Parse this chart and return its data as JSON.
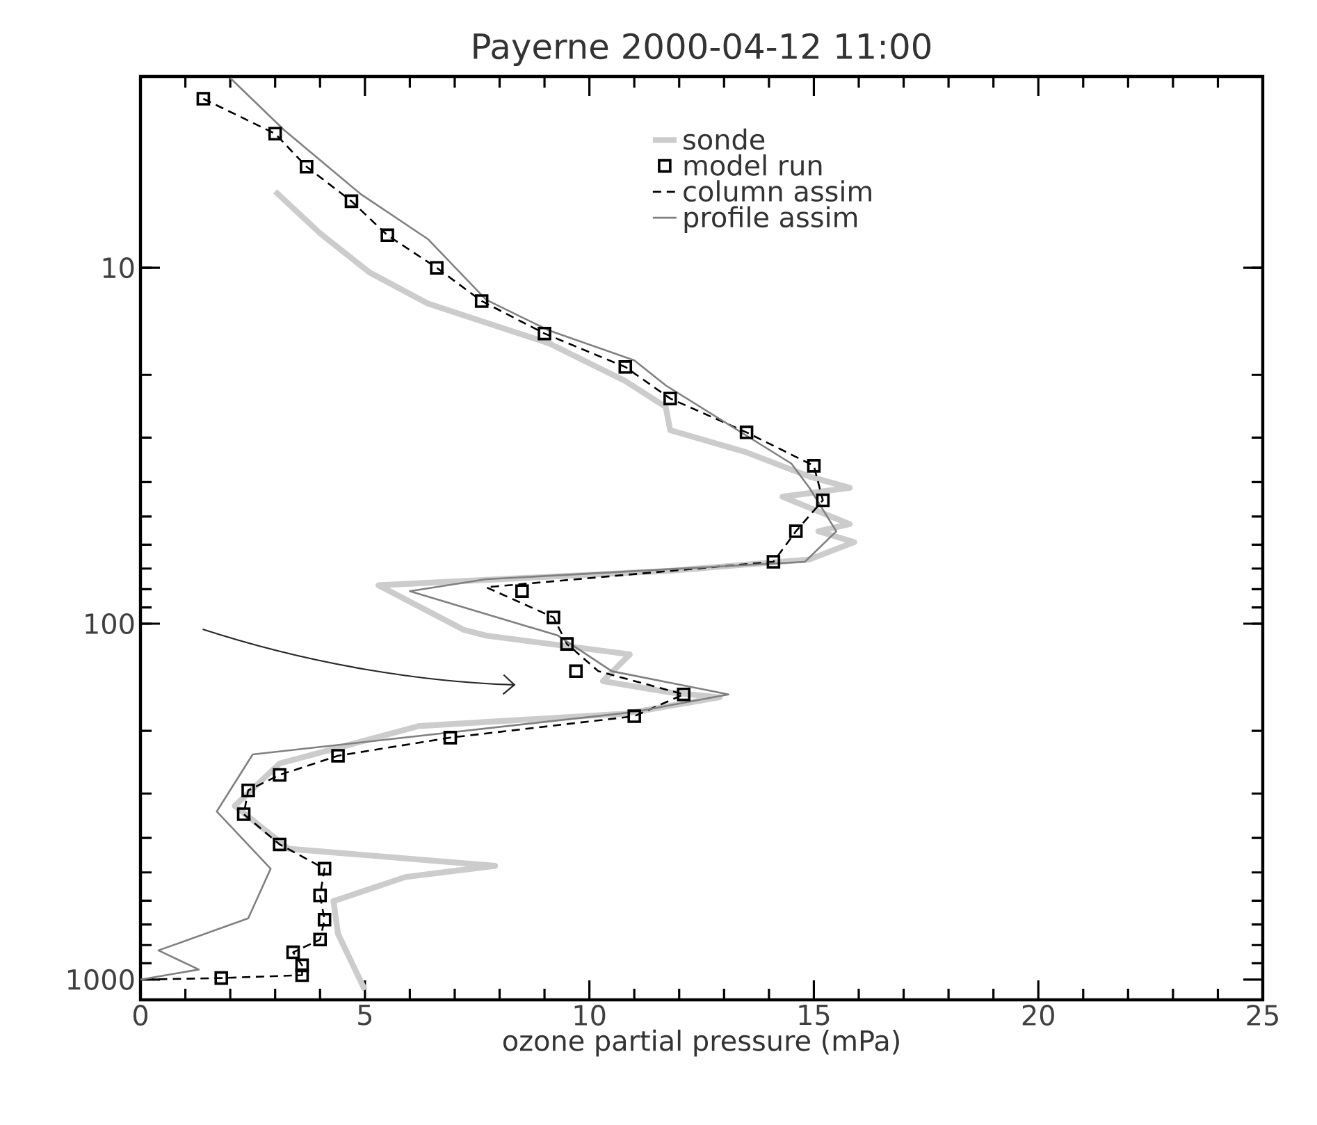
{
  "chart_data": {
    "type": "line",
    "title": "Payerne 2000-04-12 11:00",
    "xlabel": "ozone partial pressure (mPa)",
    "xlim": [
      0,
      25
    ],
    "xticks": [
      0,
      5,
      10,
      15,
      20,
      25
    ],
    "ylim": [
      1140,
      2.9
    ],
    "yticks": [
      10,
      100,
      1000
    ],
    "log": "y",
    "grid": false,
    "legend": "top right",
    "series": [
      {
        "name": "sonde",
        "color": "#cccccc",
        "line_style": "solid",
        "marker": "none",
        "x": [
          3.0,
          4.0,
          5.1,
          6.4,
          9.1,
          10.8,
          11.7,
          11.8,
          13.5,
          14.9,
          15.8,
          14.3,
          15.8,
          15.1,
          15.9,
          14.9,
          11.8,
          5.3,
          7.2,
          7.7,
          10.9,
          10.3,
          11.8,
          12.9,
          10.8,
          6.2,
          3.1,
          2.1,
          3.3,
          7.9,
          5.9,
          4.3,
          4.4,
          5.0
        ],
        "values": [
          6.1,
          8.0,
          10.3,
          12.6,
          16.3,
          20.8,
          24.6,
          28.6,
          33,
          38.6,
          41.5,
          44,
          52.5,
          55,
          59,
          66,
          71,
          78,
          104,
          108,
          122,
          145,
          156,
          161,
          179,
          194,
          247,
          325,
          429,
          479,
          515,
          602,
          744,
          1070
        ]
      },
      {
        "name": "model run",
        "type": "scatter",
        "color": "#000000",
        "marker": "square",
        "x": [
          1.4,
          3.0,
          3.7,
          4.7,
          5.5,
          6.6,
          7.6,
          9.0,
          10.8,
          11.8,
          13.5,
          15.0,
          15.2,
          14.6,
          14.1,
          8.5,
          9.2,
          9.5,
          9.7,
          12.1,
          11.0,
          6.9,
          4.4,
          3.1,
          2.4,
          2.3,
          3.1,
          4.1,
          4.0,
          4.1,
          4.0,
          3.4,
          3.6,
          3.6,
          1.8
        ],
        "values": [
          3.35,
          4.2,
          5.2,
          6.5,
          8.1,
          10,
          12.4,
          15.3,
          19,
          23.3,
          29,
          36,
          45,
          55,
          67,
          81,
          96,
          114,
          136,
          158,
          182,
          209,
          235,
          266,
          294,
          343,
          417,
          488,
          580,
          679,
          772,
          838,
          912,
          972,
          990
        ]
      },
      {
        "name": "column assim",
        "color": "#000000",
        "line_style": "dashed",
        "marker": "none",
        "x": [
          1.4,
          3.0,
          3.7,
          4.7,
          5.5,
          6.6,
          7.6,
          9.0,
          10.8,
          11.8,
          13.5,
          15.0,
          15.2,
          14.6,
          14.1,
          7.7,
          9.2,
          9.5,
          10.2,
          12.1,
          11.0,
          6.9,
          4.4,
          3.1,
          2.4,
          2.3,
          3.1,
          4.1,
          4.0,
          4.1,
          4.0,
          3.4,
          3.6,
          3.6,
          1.8,
          0
        ],
        "values": [
          3.35,
          4.2,
          5.2,
          6.5,
          8.1,
          10,
          12.4,
          15.3,
          19,
          23.3,
          29,
          36,
          45,
          55,
          67,
          79,
          96,
          114,
          136,
          158,
          182,
          209,
          235,
          266,
          294,
          343,
          417,
          488,
          580,
          679,
          772,
          838,
          912,
          972,
          990,
          1000
        ]
      },
      {
        "name": "profile assim",
        "color": "#808080",
        "line_style": "solid",
        "marker": "none",
        "x": [
          2.0,
          3.2,
          4.9,
          6.4,
          7.7,
          9.1,
          11.0,
          11.7,
          14.5,
          14.9,
          15.5,
          14.8,
          7.7,
          6.0,
          9.3,
          10.5,
          13.1,
          11.0,
          2.5,
          1.7,
          2.9,
          2.4,
          0.4,
          1.3,
          0
        ],
        "values": [
          2.93,
          4.1,
          6.2,
          8.3,
          12.3,
          15,
          18.2,
          21.4,
          35.5,
          41.5,
          55,
          67,
          75,
          81,
          108,
          136,
          158,
          177,
          233,
          337,
          488,
          673,
          828,
          937,
          1000
        ]
      }
    ]
  }
}
